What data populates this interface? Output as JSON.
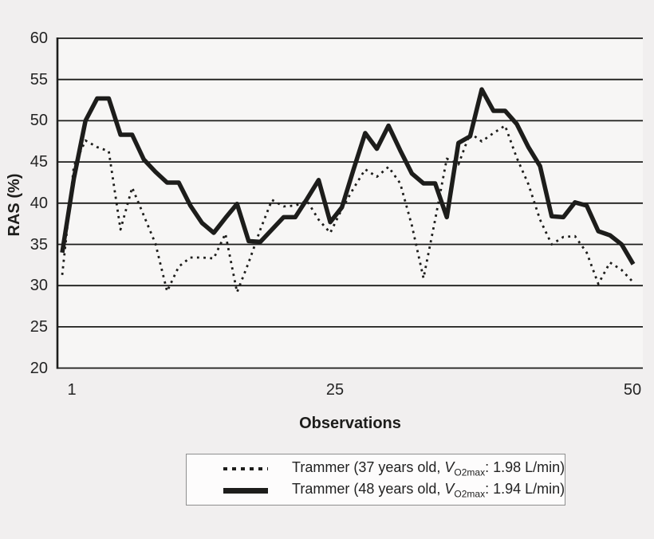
{
  "page": {
    "background": "#f1efef"
  },
  "chart": {
    "plot_background": "#f7f6f5",
    "line_color": "#1d1d1b",
    "axis_color": "#1d1d1b",
    "legend": {
      "background": "#fdfcfc",
      "border_color": "#8f8f8f",
      "items": [
        {
          "sample": "dashed-line",
          "prefix": "Trammer (37 years old, ",
          "v": "V",
          "sub": "O2max",
          "suffix": ": 1.98 L/min)"
        },
        {
          "sample": "solid-line",
          "prefix": "Trammer (48 years old, ",
          "v": "V",
          "sub": "O2max",
          "suffix": ": 1.94 L/min)"
        }
      ]
    }
  },
  "chart_data": {
    "type": "line",
    "title": "",
    "xlabel": "Observations",
    "ylabel": "RAS (%)",
    "xlim": [
      1,
      50
    ],
    "ylim": [
      20,
      60
    ],
    "xticks": [
      1,
      25,
      50
    ],
    "yticks": [
      20,
      25,
      30,
      35,
      40,
      45,
      50,
      55,
      60
    ],
    "grid": "horizontal",
    "legend_position": "bottom",
    "x": [
      1,
      2,
      3,
      4,
      5,
      6,
      7,
      8,
      9,
      10,
      11,
      12,
      13,
      14,
      15,
      16,
      17,
      18,
      19,
      20,
      21,
      22,
      23,
      24,
      25,
      26,
      27,
      28,
      29,
      30,
      31,
      32,
      33,
      34,
      35,
      36,
      37,
      38,
      39,
      40,
      41,
      42,
      43,
      44,
      45,
      46,
      47,
      48,
      49,
      50
    ],
    "series": [
      {
        "name": "Trammer (37 years old, VO2max: 1.98 L/min)",
        "style": "dashed",
        "values": [
          31.3,
          44.5,
          47.6,
          46.8,
          46.3,
          36.8,
          41.9,
          38.5,
          35.1,
          29.3,
          32.3,
          33.4,
          33.4,
          33.3,
          36.3,
          29.2,
          32.8,
          36.8,
          40.4,
          39.6,
          39.7,
          40.3,
          38.0,
          36.4,
          39.3,
          41.8,
          44.1,
          43.2,
          44.4,
          42.4,
          37.3,
          30.9,
          38.0,
          45.4,
          44.7,
          48.5,
          47.5,
          48.5,
          49.4,
          45.5,
          42.3,
          38.0,
          35.0,
          35.9,
          36.0,
          34.0,
          30.2,
          32.8,
          31.9,
          30.4
        ]
      },
      {
        "name": "Trammer (48 years old, VO2max: 1.94 L/min)",
        "style": "solid",
        "values": [
          34.0,
          43.0,
          50.0,
          52.7,
          52.7,
          48.3,
          48.3,
          45.3,
          43.8,
          42.5,
          42.5,
          39.7,
          37.6,
          36.4,
          38.2,
          39.9,
          35.4,
          35.3,
          36.8,
          38.3,
          38.3,
          40.5,
          42.8,
          37.7,
          39.5,
          44.1,
          48.5,
          46.6,
          49.4,
          46.4,
          43.6,
          42.4,
          42.4,
          38.3,
          47.3,
          48.1,
          53.8,
          51.2,
          51.2,
          49.6,
          46.8,
          44.5,
          38.4,
          38.3,
          40.1,
          39.7,
          36.6,
          36.1,
          35.0,
          32.6
        ]
      }
    ]
  }
}
